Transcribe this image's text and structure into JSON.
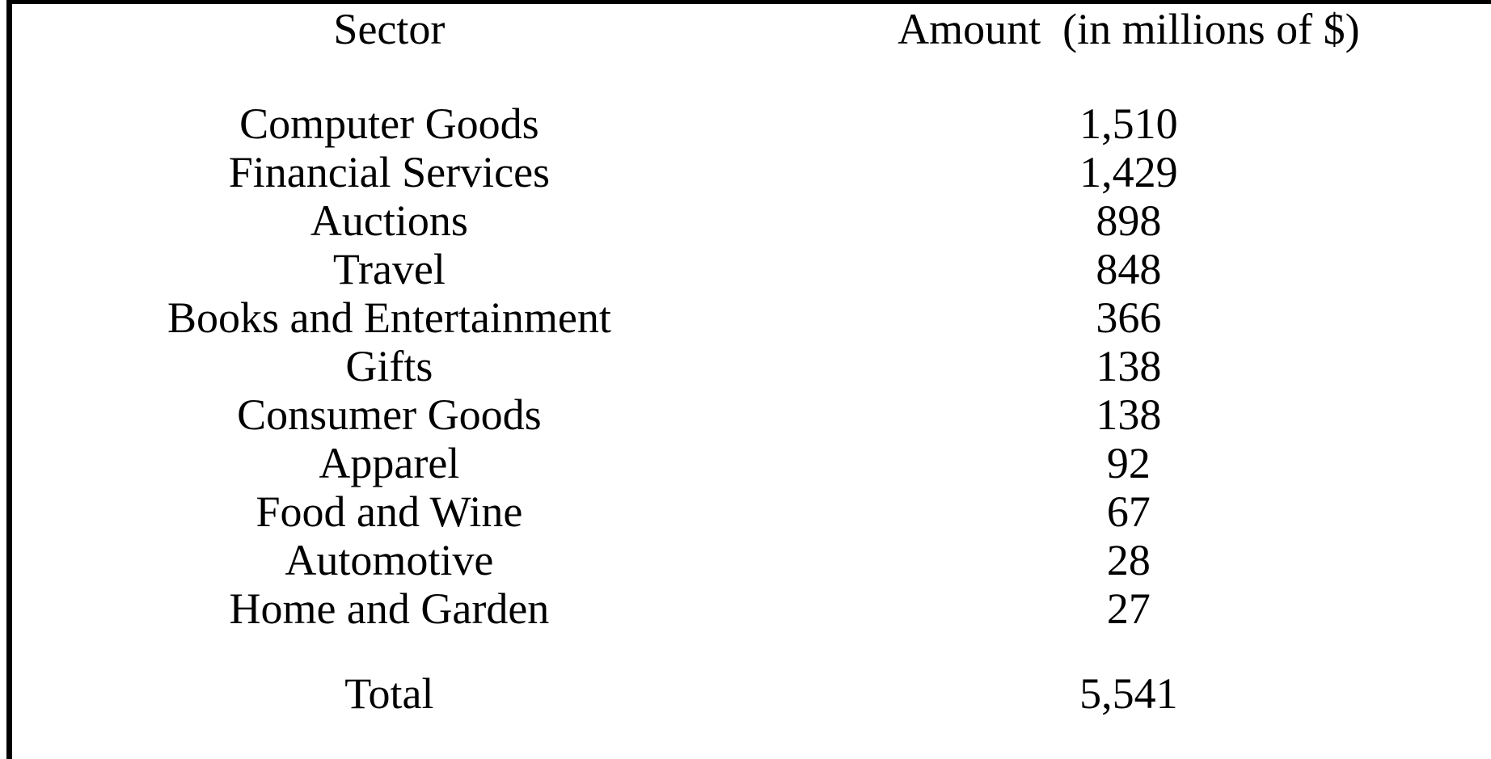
{
  "table": {
    "header": {
      "sector": "Sector",
      "amount": "Amount  (in millions of $)"
    },
    "rows": [
      {
        "sector": "Computer Goods",
        "amount": "1,510"
      },
      {
        "sector": "Financial Services",
        "amount": "1,429"
      },
      {
        "sector": "Auctions",
        "amount": "898"
      },
      {
        "sector": "Travel",
        "amount": "848"
      },
      {
        "sector": "Books and Entertainment",
        "amount": "366"
      },
      {
        "sector": "Gifts",
        "amount": "138"
      },
      {
        "sector": "Consumer Goods",
        "amount": "138"
      },
      {
        "sector": "Apparel",
        "amount": "92"
      },
      {
        "sector": "Food and Wine",
        "amount": "67"
      },
      {
        "sector": "Automotive",
        "amount": "28"
      },
      {
        "sector": "Home and Garden",
        "amount": "27"
      }
    ],
    "total": {
      "label": "Total",
      "amount": "5,541"
    }
  },
  "colors": {
    "text": "#000000",
    "border": "#000000",
    "background": "#ffffff"
  },
  "chart_data": {
    "type": "table",
    "title": "",
    "columns": [
      "Sector",
      "Amount (in millions of $)"
    ],
    "categories": [
      "Computer Goods",
      "Financial Services",
      "Auctions",
      "Travel",
      "Books and Entertainment",
      "Gifts",
      "Consumer Goods",
      "Apparel",
      "Food and Wine",
      "Automotive",
      "Home and Garden"
    ],
    "values": [
      1510,
      1429,
      898,
      848,
      366,
      138,
      138,
      92,
      67,
      28,
      27
    ],
    "total_label": "Total",
    "total_value": 5541,
    "units": "millions of $"
  }
}
